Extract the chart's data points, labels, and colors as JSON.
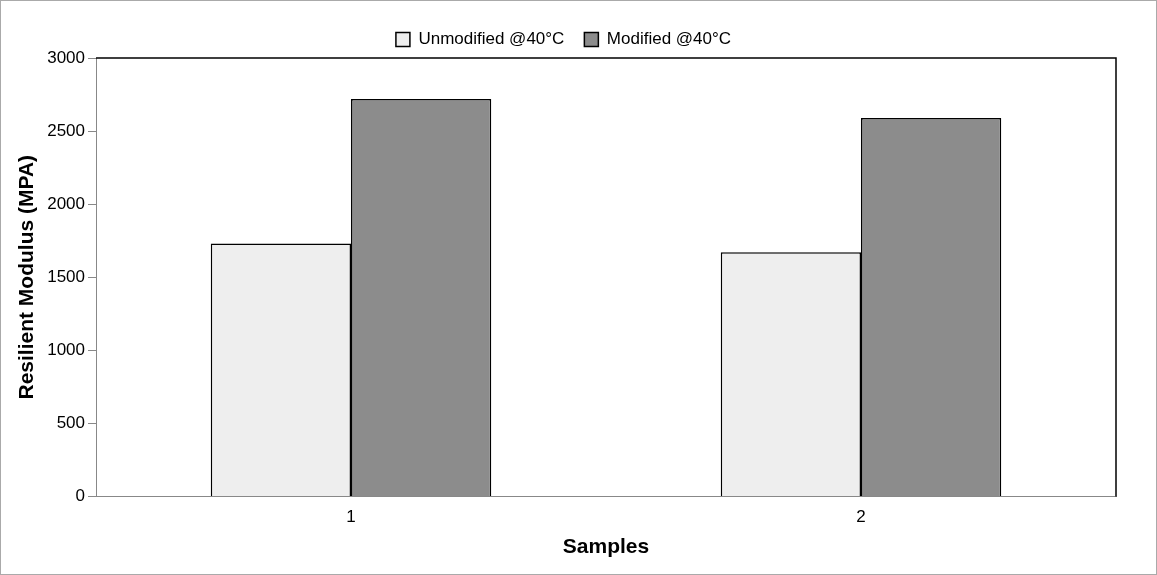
{
  "chart_data": {
    "type": "bar",
    "xlabel": "Samples",
    "ylabel": "Resilient Modulus (MPA)",
    "categories": [
      "1",
      "2"
    ],
    "series": [
      {
        "name": "Unmodified @40°C",
        "color": "#eeeeee",
        "values": [
          1730,
          1670
        ]
      },
      {
        "name": "Modified @40°C",
        "color": "#8c8c8c",
        "values": [
          2720,
          2590
        ]
      }
    ],
    "ylim": [
      0,
      3000
    ],
    "yticks": [
      0,
      500,
      1000,
      1500,
      2000,
      2500,
      3000
    ],
    "grid": false,
    "legend": "top"
  }
}
